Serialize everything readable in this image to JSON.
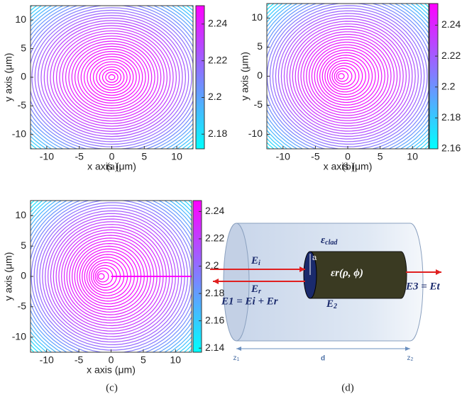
{
  "chart_data": [
    {
      "type": "contour",
      "caption": "(a)",
      "xlabel": "x axis (μm)",
      "ylabel": "y axis (μm)",
      "xlim": [
        -12.5,
        12.5
      ],
      "ylim": [
        -12.5,
        12.5
      ],
      "xticks": [
        -10,
        -5,
        0,
        5,
        10
      ],
      "yticks": [
        -10,
        -5,
        0,
        5,
        10
      ],
      "clim": [
        2.172,
        2.25
      ],
      "cticks": [
        2.18,
        2.2,
        2.22,
        2.24
      ],
      "colormap": [
        "#00ffff",
        "#ff00ff"
      ]
    },
    {
      "type": "contour",
      "caption": "(b)",
      "xlabel": "x axis (μm)",
      "ylabel": "y axis (μm)",
      "xlim": [
        -12.5,
        12.5
      ],
      "ylim": [
        -12.5,
        12.5
      ],
      "xticks": [
        -10,
        -5,
        0,
        5,
        10
      ],
      "yticks": [
        -10,
        -5,
        0,
        5,
        10
      ],
      "clim": [
        2.16,
        2.254
      ],
      "cticks": [
        2.16,
        2.18,
        2.2,
        2.22,
        2.24
      ],
      "colormap": [
        "#00ffff",
        "#ff00ff"
      ]
    },
    {
      "type": "contour",
      "caption": "(c)",
      "xlabel": "x axis (μm)",
      "ylabel": "y axis (μm)",
      "xlim": [
        -12.5,
        12.5
      ],
      "ylim": [
        -12.5,
        12.5
      ],
      "xticks": [
        -10,
        -5,
        0,
        5,
        10
      ],
      "yticks": [
        -10,
        -5,
        0,
        5,
        10
      ],
      "clim": [
        2.137,
        2.248
      ],
      "cticks": [
        2.14,
        2.16,
        2.18,
        2.2,
        2.22,
        2.24
      ],
      "colormap": [
        "#00ffff",
        "#ff00ff"
      ]
    }
  ],
  "diagram": {
    "caption": "(d)",
    "eps_clad": {
      "base": "ε",
      "sub": "clad"
    },
    "eps_r": "εr(ρ, ϕ)",
    "e_i": {
      "base": "E",
      "sub": "i"
    },
    "e_r": {
      "base": "E",
      "sub": "r"
    },
    "e_2": {
      "base": "E",
      "sub": "2"
    },
    "e_1": "E1 = Ei + Er",
    "e_3": "E3 = Et",
    "a": "a",
    "z1": {
      "base": "z",
      "sub": "1"
    },
    "z2": {
      "base": "z",
      "sub": "2"
    },
    "d": "d"
  }
}
